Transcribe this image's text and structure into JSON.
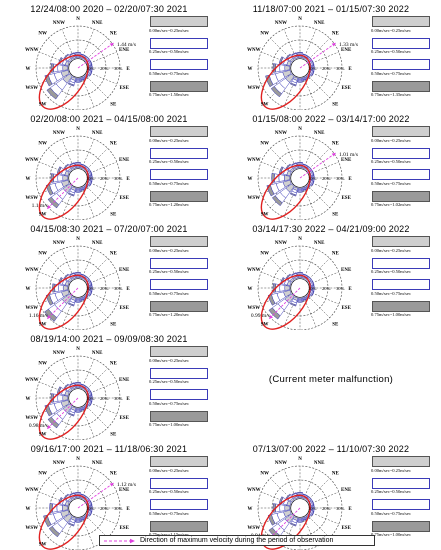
{
  "chart_data": [
    {
      "type": "polar-rose",
      "panel": 0,
      "title": "12/24/08:00 2020 – 02/20/07:30 2021",
      "max_label": "1.44 m/s",
      "max_dir_deg": 55,
      "directions": [
        "N",
        "NNE",
        "NE",
        "ENE",
        "E",
        "ESE",
        "SE",
        "SSE",
        "S",
        "SSW",
        "SW",
        "WSW",
        "W",
        "WNW",
        "NW",
        "NNW"
      ],
      "ring_labels": [
        "10%",
        "20%",
        "30%"
      ],
      "legend": [
        "0.00m/sec~0.25m/sec",
        "0.25m/sec~0.50m/sec",
        "0.50m/sec~0.75m/sec",
        "0.75m/sec~1.50m/sec"
      ],
      "freq_pct": [
        4,
        3,
        3,
        3,
        3,
        3,
        2,
        2,
        3,
        6,
        20,
        17,
        12,
        7,
        5,
        4
      ]
    },
    {
      "type": "polar-rose",
      "panel": 1,
      "title": "11/18/07:00 2021 – 01/15/07:30 2022",
      "max_label": "1.33 m/s",
      "max_dir_deg": 55,
      "directions": [
        "N",
        "NNE",
        "NE",
        "ENE",
        "E",
        "ESE",
        "SE",
        "SSE",
        "S",
        "SSW",
        "SW",
        "WSW",
        "W",
        "WNW",
        "NW",
        "NNW"
      ],
      "ring_labels": [
        "10%",
        "20%",
        "30%"
      ],
      "legend": [
        "0.00m/sec~0.25m/sec",
        "0.25m/sec~0.50m/sec",
        "0.50m/sec~0.75m/sec",
        "0.75m/sec~1.35m/sec"
      ],
      "freq_pct": [
        4,
        3,
        3,
        3,
        3,
        3,
        2,
        2,
        3,
        6,
        18,
        18,
        12,
        8,
        5,
        4
      ]
    },
    {
      "type": "polar-rose",
      "panel": 2,
      "title": "02/20/08:00 2021 – 04/15/08:00 2021",
      "max_label": "1.1 m/s",
      "max_dir_deg": 225,
      "directions": [
        "N",
        "NNE",
        "NE",
        "ENE",
        "E",
        "ESE",
        "SE",
        "SSE",
        "S",
        "SSW",
        "SW",
        "WSW",
        "W",
        "WNW",
        "NW",
        "NNW"
      ],
      "ring_labels": [
        "10%",
        "20%",
        "30%"
      ],
      "legend": [
        "0.00m/sec~0.25m/sec",
        "0.25m/sec~0.50m/sec",
        "0.50m/sec~0.75m/sec",
        "0.75m/sec~1.20m/sec"
      ],
      "freq_pct": [
        4,
        3,
        3,
        3,
        3,
        3,
        2,
        2,
        3,
        6,
        19,
        16,
        12,
        8,
        5,
        4
      ]
    },
    {
      "type": "polar-rose",
      "panel": 3,
      "title": "01/15/08:00 2022 – 03/14/17:00 2022",
      "max_label": "1.01 m/s",
      "max_dir_deg": 55,
      "directions": [
        "N",
        "NNE",
        "NE",
        "ENE",
        "E",
        "ESE",
        "SE",
        "SSE",
        "S",
        "SSW",
        "SW",
        "WSW",
        "W",
        "WNW",
        "NW",
        "NNW"
      ],
      "ring_labels": [
        "10%",
        "20%",
        "30%"
      ],
      "legend": [
        "0.00m/sec~0.25m/sec",
        "0.25m/sec~0.50m/sec",
        "0.50m/sec~0.75m/sec",
        "0.75m/sec~1.02m/sec"
      ],
      "freq_pct": [
        4,
        3,
        3,
        3,
        3,
        3,
        2,
        2,
        3,
        6,
        17,
        17,
        13,
        8,
        5,
        4
      ]
    },
    {
      "type": "polar-rose",
      "panel": 4,
      "title": "04/15/08:30 2021 – 07/20/07:00 2021",
      "max_label": "1.16 m/s",
      "max_dir_deg": 225,
      "directions": [
        "N",
        "NNE",
        "NE",
        "ENE",
        "E",
        "ESE",
        "SE",
        "SSE",
        "S",
        "SSW",
        "SW",
        "WSW",
        "W",
        "WNW",
        "NW",
        "NNW"
      ],
      "ring_labels": [
        "10%",
        "20%",
        "30%"
      ],
      "legend": [
        "0.00m/sec~0.25m/sec",
        "0.25m/sec~0.50m/sec",
        "0.50m/sec~0.75m/sec",
        "0.75m/sec~1.20m/sec"
      ],
      "freq_pct": [
        4,
        3,
        3,
        3,
        3,
        3,
        2,
        2,
        3,
        6,
        22,
        16,
        11,
        7,
        5,
        4
      ]
    },
    {
      "type": "polar-rose",
      "panel": 5,
      "title": "03/14/17:30 2022 – 04/21/09:00 2022",
      "max_label": "0.99 m/s",
      "max_dir_deg": 225,
      "directions": [
        "N",
        "NNE",
        "NE",
        "ENE",
        "E",
        "ESE",
        "SE",
        "SSE",
        "S",
        "SSW",
        "SW",
        "WSW",
        "W",
        "WNW",
        "NW",
        "NNW"
      ],
      "ring_labels": [
        "10%",
        "20%",
        "30%"
      ],
      "legend": [
        "0.00m/sec~0.25m/sec",
        "0.25m/sec~0.50m/sec",
        "0.50m/sec~0.75m/sec",
        "0.75m/sec~1.00m/sec"
      ],
      "freq_pct": [
        4,
        3,
        3,
        3,
        3,
        3,
        2,
        2,
        3,
        6,
        20,
        16,
        12,
        7,
        5,
        4
      ]
    },
    {
      "type": "polar-rose",
      "panel": 6,
      "title": "08/19/14:00 2021 – 09/09/08:30 2021",
      "max_label": "0.98 m/s",
      "max_dir_deg": 225,
      "directions": [
        "N",
        "NNE",
        "NE",
        "ENE",
        "E",
        "ESE",
        "SE",
        "SSE",
        "S",
        "SSW",
        "SW",
        "WSW",
        "W",
        "WNW",
        "NW",
        "NNW"
      ],
      "ring_labels": [
        "10%",
        "20%",
        "30%"
      ],
      "legend": [
        "0.00m/sec~0.25m/sec",
        "0.25m/sec~0.50m/sec",
        "0.50m/sec~0.75m/sec",
        "0.75m/sec~1.00m/sec"
      ],
      "freq_pct": [
        4,
        3,
        3,
        3,
        3,
        3,
        2,
        2,
        3,
        6,
        19,
        17,
        12,
        8,
        5,
        4
      ]
    },
    {
      "type": "polar-rose",
      "panel": 8,
      "title": "09/16/17:00 2021 – 11/18/06:30 2021",
      "max_label": "1.12 m/s",
      "max_dir_deg": 55,
      "directions": [
        "N",
        "NNE",
        "NE",
        "ENE",
        "E",
        "ESE",
        "SE",
        "SSE",
        "S",
        "SSW",
        "SW",
        "WSW",
        "W",
        "WNW",
        "NW",
        "NNW"
      ],
      "ring_labels": [
        "10%",
        "20%",
        "30%"
      ],
      "legend": [
        "0.00m/sec~0.25m/sec",
        "0.25m/sec~0.50m/sec",
        "0.50m/sec~0.75m/sec",
        "0.75m/sec~1.15m/sec"
      ],
      "freq_pct": [
        4,
        3,
        3,
        3,
        3,
        3,
        2,
        2,
        3,
        6,
        18,
        18,
        13,
        7,
        5,
        4
      ]
    },
    {
      "type": "polar-rose",
      "panel": 9,
      "title": "07/13/07:00 2022 – 11/10/07:30 2022",
      "max_label": "0.94 m/s",
      "max_dir_deg": 225,
      "directions": [
        "N",
        "NNE",
        "NE",
        "ENE",
        "E",
        "ESE",
        "SE",
        "SSE",
        "S",
        "SSW",
        "SW",
        "WSW",
        "W",
        "WNW",
        "NW",
        "NNW"
      ],
      "ring_labels": [
        "10%",
        "20%",
        "30%"
      ],
      "legend": [
        "0.00m/sec~0.25m/sec",
        "0.25m/sec~0.50m/sec",
        "0.50m/sec~0.75m/sec",
        "0.75m/sec~1.00m/sec"
      ],
      "freq_pct": [
        4,
        3,
        3,
        3,
        3,
        3,
        2,
        2,
        3,
        6,
        20,
        16,
        12,
        8,
        5,
        4
      ]
    }
  ],
  "malfunction_text": "(Current meter malfunction)",
  "footer_text": "Direction of maximum velocity during the period of observation",
  "colors": {
    "ring": "#444444",
    "highlight": "#e02020",
    "arrow": "#e040e0",
    "bins": [
      "#cfcfcf",
      "#ffffff",
      "#ffffff",
      "#9a9a9a"
    ],
    "bin_border": "#3b3bb8"
  }
}
